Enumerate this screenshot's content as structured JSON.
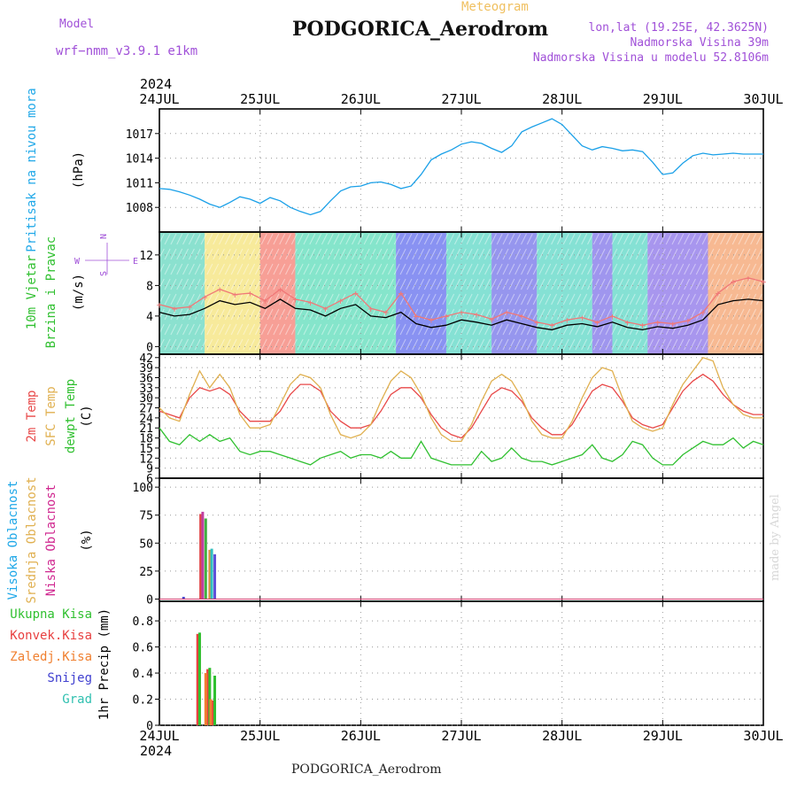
{
  "header": {
    "model_label": "Model",
    "model_name": "wrf−nmm_v3.9.1  e1km",
    "station": "PODGORICA_Aerodrom",
    "product": "Meteogram",
    "coords": "lon,lat (19.25E, 42.3625N)",
    "altitude": "Nadmorska Visina 39m",
    "model_altitude": "Nadmorska Visina u modelu 52.8106m",
    "footer": "PODGORICA_Aerodrom",
    "credit": "made by Angel",
    "colors": {
      "title_purple": "#a050d8",
      "meteogram_orange": "#f0c060"
    }
  },
  "time_axis": {
    "year": "2024",
    "start_day": 24,
    "end_day": 30,
    "ticks": [
      "24JUL",
      "25JUL",
      "26JUL",
      "27JUL",
      "28JUL",
      "29JUL",
      "30JUL"
    ]
  },
  "chart_data": [
    {
      "type": "line",
      "id": "pressure",
      "ylabel": "Pritisak na nivou mora",
      "unit": "(hPa)",
      "yticks": [
        1008,
        1011,
        1014,
        1017
      ],
      "ylim": [
        1005,
        1020
      ],
      "grid": true,
      "series": [
        {
          "color": "#1aa0e8",
          "x": [
            24.0,
            24.1,
            24.2,
            24.3,
            24.4,
            24.5,
            24.6,
            24.7,
            24.8,
            24.9,
            25.0,
            25.1,
            25.2,
            25.3,
            25.4,
            25.5,
            25.6,
            25.7,
            25.8,
            25.9,
            26.0,
            26.1,
            26.2,
            26.3,
            26.4,
            26.5,
            26.6,
            26.7,
            26.8,
            26.9,
            27.0,
            27.1,
            27.2,
            27.3,
            27.4,
            27.5,
            27.6,
            27.7,
            27.8,
            27.9,
            28.0,
            28.1,
            28.2,
            28.3,
            28.4,
            28.5,
            28.6,
            28.7,
            28.8,
            28.9,
            29.0,
            29.1,
            29.2,
            29.3,
            29.4,
            29.5,
            29.6,
            29.7,
            29.8,
            29.9,
            30.0
          ],
          "values": [
            1010.3,
            1010.2,
            1009.9,
            1009.5,
            1009.0,
            1008.4,
            1008.0,
            1008.6,
            1009.3,
            1009.0,
            1008.5,
            1009.2,
            1008.8,
            1008.0,
            1007.5,
            1007.1,
            1007.5,
            1008.8,
            1010.0,
            1010.5,
            1010.6,
            1011.0,
            1011.1,
            1010.8,
            1010.3,
            1010.6,
            1012.0,
            1013.8,
            1014.5,
            1015.0,
            1015.7,
            1016.0,
            1015.8,
            1015.2,
            1014.7,
            1015.5,
            1017.2,
            1017.8,
            1018.3,
            1018.8,
            1018.1,
            1016.8,
            1015.5,
            1015.0,
            1015.4,
            1015.2,
            1014.9,
            1015.0,
            1014.8,
            1013.5,
            1012.0,
            1012.2,
            1013.4,
            1014.3,
            1014.6,
            1014.4,
            1014.5,
            1014.6,
            1014.5,
            1014.5,
            1014.5
          ]
        }
      ]
    },
    {
      "type": "line",
      "id": "wind",
      "ylabel": "10m Vjetar",
      "ylabel2": "Brzina i Pravac",
      "unit": "(m/s)",
      "compass": {
        "n": "N",
        "s": "S",
        "e": "E",
        "w": "W"
      },
      "yticks": [
        0,
        4,
        8,
        12
      ],
      "ylim": [
        -1,
        15
      ],
      "grid": true,
      "series": [
        {
          "color": "#000000",
          "x": [
            24.0,
            24.15,
            24.3,
            24.45,
            24.6,
            24.75,
            24.9,
            25.05,
            25.2,
            25.35,
            25.5,
            25.65,
            25.8,
            25.95,
            26.1,
            26.25,
            26.4,
            26.55,
            26.7,
            26.85,
            27.0,
            27.15,
            27.3,
            27.45,
            27.6,
            27.75,
            27.9,
            28.05,
            28.2,
            28.35,
            28.5,
            28.65,
            28.8,
            28.95,
            29.1,
            29.25,
            29.4,
            29.55,
            29.7,
            29.85,
            30.0
          ],
          "values": [
            4.5,
            4.0,
            4.2,
            5.0,
            6.0,
            5.5,
            5.8,
            5.0,
            6.2,
            5.0,
            4.8,
            4.0,
            5.0,
            5.5,
            4.0,
            3.8,
            4.5,
            3.0,
            2.5,
            2.8,
            3.5,
            3.2,
            2.8,
            3.5,
            3.0,
            2.5,
            2.2,
            2.8,
            3.0,
            2.6,
            3.2,
            2.5,
            2.2,
            2.6,
            2.4,
            2.8,
            3.5,
            5.5,
            6.0,
            6.2,
            6.0
          ]
        },
        {
          "color": "#f07878",
          "x": [
            24.0,
            24.15,
            24.3,
            24.45,
            24.6,
            24.75,
            24.9,
            25.05,
            25.2,
            25.35,
            25.5,
            25.65,
            25.8,
            25.95,
            26.1,
            26.25,
            26.4,
            26.55,
            26.7,
            26.85,
            27.0,
            27.15,
            27.3,
            27.45,
            27.6,
            27.75,
            27.9,
            28.05,
            28.2,
            28.35,
            28.5,
            28.65,
            28.8,
            28.95,
            29.1,
            29.25,
            29.4,
            29.55,
            29.7,
            29.85,
            30.0
          ],
          "values": [
            5.5,
            5.0,
            5.2,
            6.5,
            7.5,
            6.8,
            7.0,
            6.0,
            7.5,
            6.2,
            5.8,
            5.0,
            6.0,
            7.0,
            5.0,
            4.5,
            7.0,
            4.0,
            3.5,
            4.0,
            4.5,
            4.2,
            3.6,
            4.5,
            4.0,
            3.2,
            2.8,
            3.5,
            3.8,
            3.2,
            4.0,
            3.2,
            2.8,
            3.2,
            3.0,
            3.4,
            4.5,
            7.0,
            8.5,
            9.0,
            8.5
          ]
        }
      ]
    },
    {
      "type": "line",
      "id": "temperature",
      "ylabel": "2m Temp",
      "ylabel2": "SFC Temp",
      "ylabel3": "dewpt Temp",
      "unit": "(C)",
      "yticks": [
        6,
        9,
        12,
        15,
        18,
        21,
        24,
        27,
        30,
        33,
        36,
        39,
        42
      ],
      "ylim": [
        6,
        43
      ],
      "grid": true,
      "series": [
        {
          "color": "#e84848",
          "x": [
            24.0,
            24.1,
            24.2,
            24.3,
            24.4,
            24.5,
            24.6,
            24.7,
            24.8,
            24.9,
            25.0,
            25.1,
            25.2,
            25.3,
            25.4,
            25.5,
            25.6,
            25.7,
            25.8,
            25.9,
            26.0,
            26.1,
            26.2,
            26.3,
            26.4,
            26.5,
            26.6,
            26.7,
            26.8,
            26.9,
            27.0,
            27.1,
            27.2,
            27.3,
            27.4,
            27.5,
            27.6,
            27.7,
            27.8,
            27.9,
            28.0,
            28.1,
            28.2,
            28.3,
            28.4,
            28.5,
            28.6,
            28.7,
            28.8,
            28.9,
            29.0,
            29.1,
            29.2,
            29.3,
            29.4,
            29.5,
            29.6,
            29.7,
            29.8,
            29.9,
            30.0
          ],
          "values": [
            26,
            25,
            24,
            30,
            33,
            32,
            33,
            31,
            26,
            23,
            23,
            23,
            26,
            31,
            34,
            34,
            32,
            26,
            23,
            21,
            21,
            22,
            26,
            31,
            33,
            33,
            30,
            25,
            21,
            19,
            18,
            21,
            26,
            31,
            33,
            32,
            29,
            24,
            21,
            19,
            19,
            22,
            27,
            32,
            34,
            33,
            29,
            24,
            22,
            21,
            22,
            27,
            32,
            35,
            37,
            35,
            31,
            28,
            26,
            25,
            25
          ]
        },
        {
          "color": "#e0b050",
          "x": [
            24.0,
            24.1,
            24.2,
            24.3,
            24.4,
            24.5,
            24.6,
            24.7,
            24.8,
            24.9,
            25.0,
            25.1,
            25.2,
            25.3,
            25.4,
            25.5,
            25.6,
            25.7,
            25.8,
            25.9,
            26.0,
            26.1,
            26.2,
            26.3,
            26.4,
            26.5,
            26.6,
            26.7,
            26.8,
            26.9,
            27.0,
            27.1,
            27.2,
            27.3,
            27.4,
            27.5,
            27.6,
            27.7,
            27.8,
            27.9,
            28.0,
            28.1,
            28.2,
            28.3,
            28.4,
            28.5,
            28.6,
            28.7,
            28.8,
            28.9,
            29.0,
            29.1,
            29.2,
            29.3,
            29.4,
            29.5,
            29.6,
            29.7,
            29.8,
            29.9,
            30.0
          ],
          "values": [
            27,
            24,
            23,
            31,
            38,
            33,
            37,
            33,
            25,
            21,
            21,
            22,
            28,
            34,
            37,
            36,
            33,
            25,
            19,
            18,
            19,
            22,
            29,
            35,
            38,
            36,
            31,
            24,
            19,
            17,
            17,
            22,
            29,
            35,
            37,
            35,
            30,
            23,
            19,
            18,
            18,
            23,
            30,
            36,
            39,
            38,
            30,
            23,
            21,
            20,
            21,
            28,
            34,
            38,
            42,
            41,
            33,
            28,
            25,
            24,
            24
          ]
        },
        {
          "color": "#30c030",
          "x": [
            24.0,
            24.1,
            24.2,
            24.3,
            24.4,
            24.5,
            24.6,
            24.7,
            24.8,
            24.9,
            25.0,
            25.1,
            25.2,
            25.3,
            25.4,
            25.5,
            25.6,
            25.7,
            25.8,
            25.9,
            26.0,
            26.1,
            26.2,
            26.3,
            26.4,
            26.5,
            26.6,
            26.7,
            26.8,
            26.9,
            27.0,
            27.1,
            27.2,
            27.3,
            27.4,
            27.5,
            27.6,
            27.7,
            27.8,
            27.9,
            28.0,
            28.1,
            28.2,
            28.3,
            28.4,
            28.5,
            28.6,
            28.7,
            28.8,
            28.9,
            29.0,
            29.1,
            29.2,
            29.3,
            29.4,
            29.5,
            29.6,
            29.7,
            29.8,
            29.9,
            30.0
          ],
          "values": [
            21,
            17,
            16,
            19,
            17,
            19,
            17,
            18,
            14,
            13,
            14,
            14,
            13,
            12,
            11,
            10,
            12,
            13,
            14,
            12,
            13,
            13,
            12,
            14,
            12,
            12,
            17,
            12,
            11,
            10,
            10,
            10,
            14,
            11,
            12,
            15,
            12,
            11,
            11,
            10,
            11,
            12,
            13,
            16,
            12,
            11,
            13,
            17,
            16,
            12,
            10,
            10,
            13,
            15,
            17,
            16,
            16,
            18,
            15,
            17,
            16
          ]
        }
      ]
    },
    {
      "type": "bar",
      "id": "clouds",
      "ylabel": "Visoka Oblacnost",
      "ylabel2": "Srednja Oblacnost",
      "ylabel3": "Niska  Oblacnost",
      "unit": "(%)",
      "yticks": [
        0,
        25,
        50,
        75,
        100
      ],
      "ylim": [
        -2,
        108
      ],
      "grid": true,
      "series": [
        {
          "color": "#e04848",
          "x": [
            24.41
          ],
          "values": [
            76
          ]
        },
        {
          "color": "#c040a0",
          "x": [
            24.43
          ],
          "values": [
            78
          ]
        },
        {
          "color": "#40b040",
          "x": [
            24.46
          ],
          "values": [
            72
          ]
        },
        {
          "color": "#e09040",
          "x": [
            24.5
          ],
          "values": [
            44
          ]
        },
        {
          "color": "#30c0c0",
          "x": [
            24.52
          ],
          "values": [
            45
          ]
        },
        {
          "color": "#6050d8",
          "x": [
            24.55
          ],
          "values": [
            40
          ]
        },
        {
          "color": "#4848d0",
          "x": [
            24.24
          ],
          "values": [
            2
          ]
        }
      ]
    },
    {
      "type": "bar",
      "id": "precip",
      "ylabel": "1hr Precip (mm)",
      "unit": "",
      "yticks": [
        0,
        0.2,
        0.4,
        0.6,
        0.8
      ],
      "ylim": [
        0,
        0.95
      ],
      "grid": true,
      "legend": [
        {
          "label": "Ukupna  Kisa",
          "color": "#30c030"
        },
        {
          "label": "Konvek.Kisa",
          "color": "#e84040"
        },
        {
          "label": "Zaledj.Kisa",
          "color": "#f08030"
        },
        {
          "label": "Snijeg",
          "color": "#4040d0"
        },
        {
          "label": "Grad",
          "color": "#30c0b0"
        }
      ],
      "series": [
        {
          "color": "#e84040",
          "x": [
            24.38,
            24.48,
            24.53
          ],
          "values": [
            0.7,
            0.43,
            0.19
          ]
        },
        {
          "color": "#30c030",
          "x": [
            24.4,
            24.5,
            24.55
          ],
          "values": [
            0.71,
            0.44,
            0.38
          ]
        },
        {
          "color": "#f08030",
          "x": [
            24.46,
            24.51
          ],
          "values": [
            0.4,
            0.2
          ]
        }
      ]
    }
  ]
}
